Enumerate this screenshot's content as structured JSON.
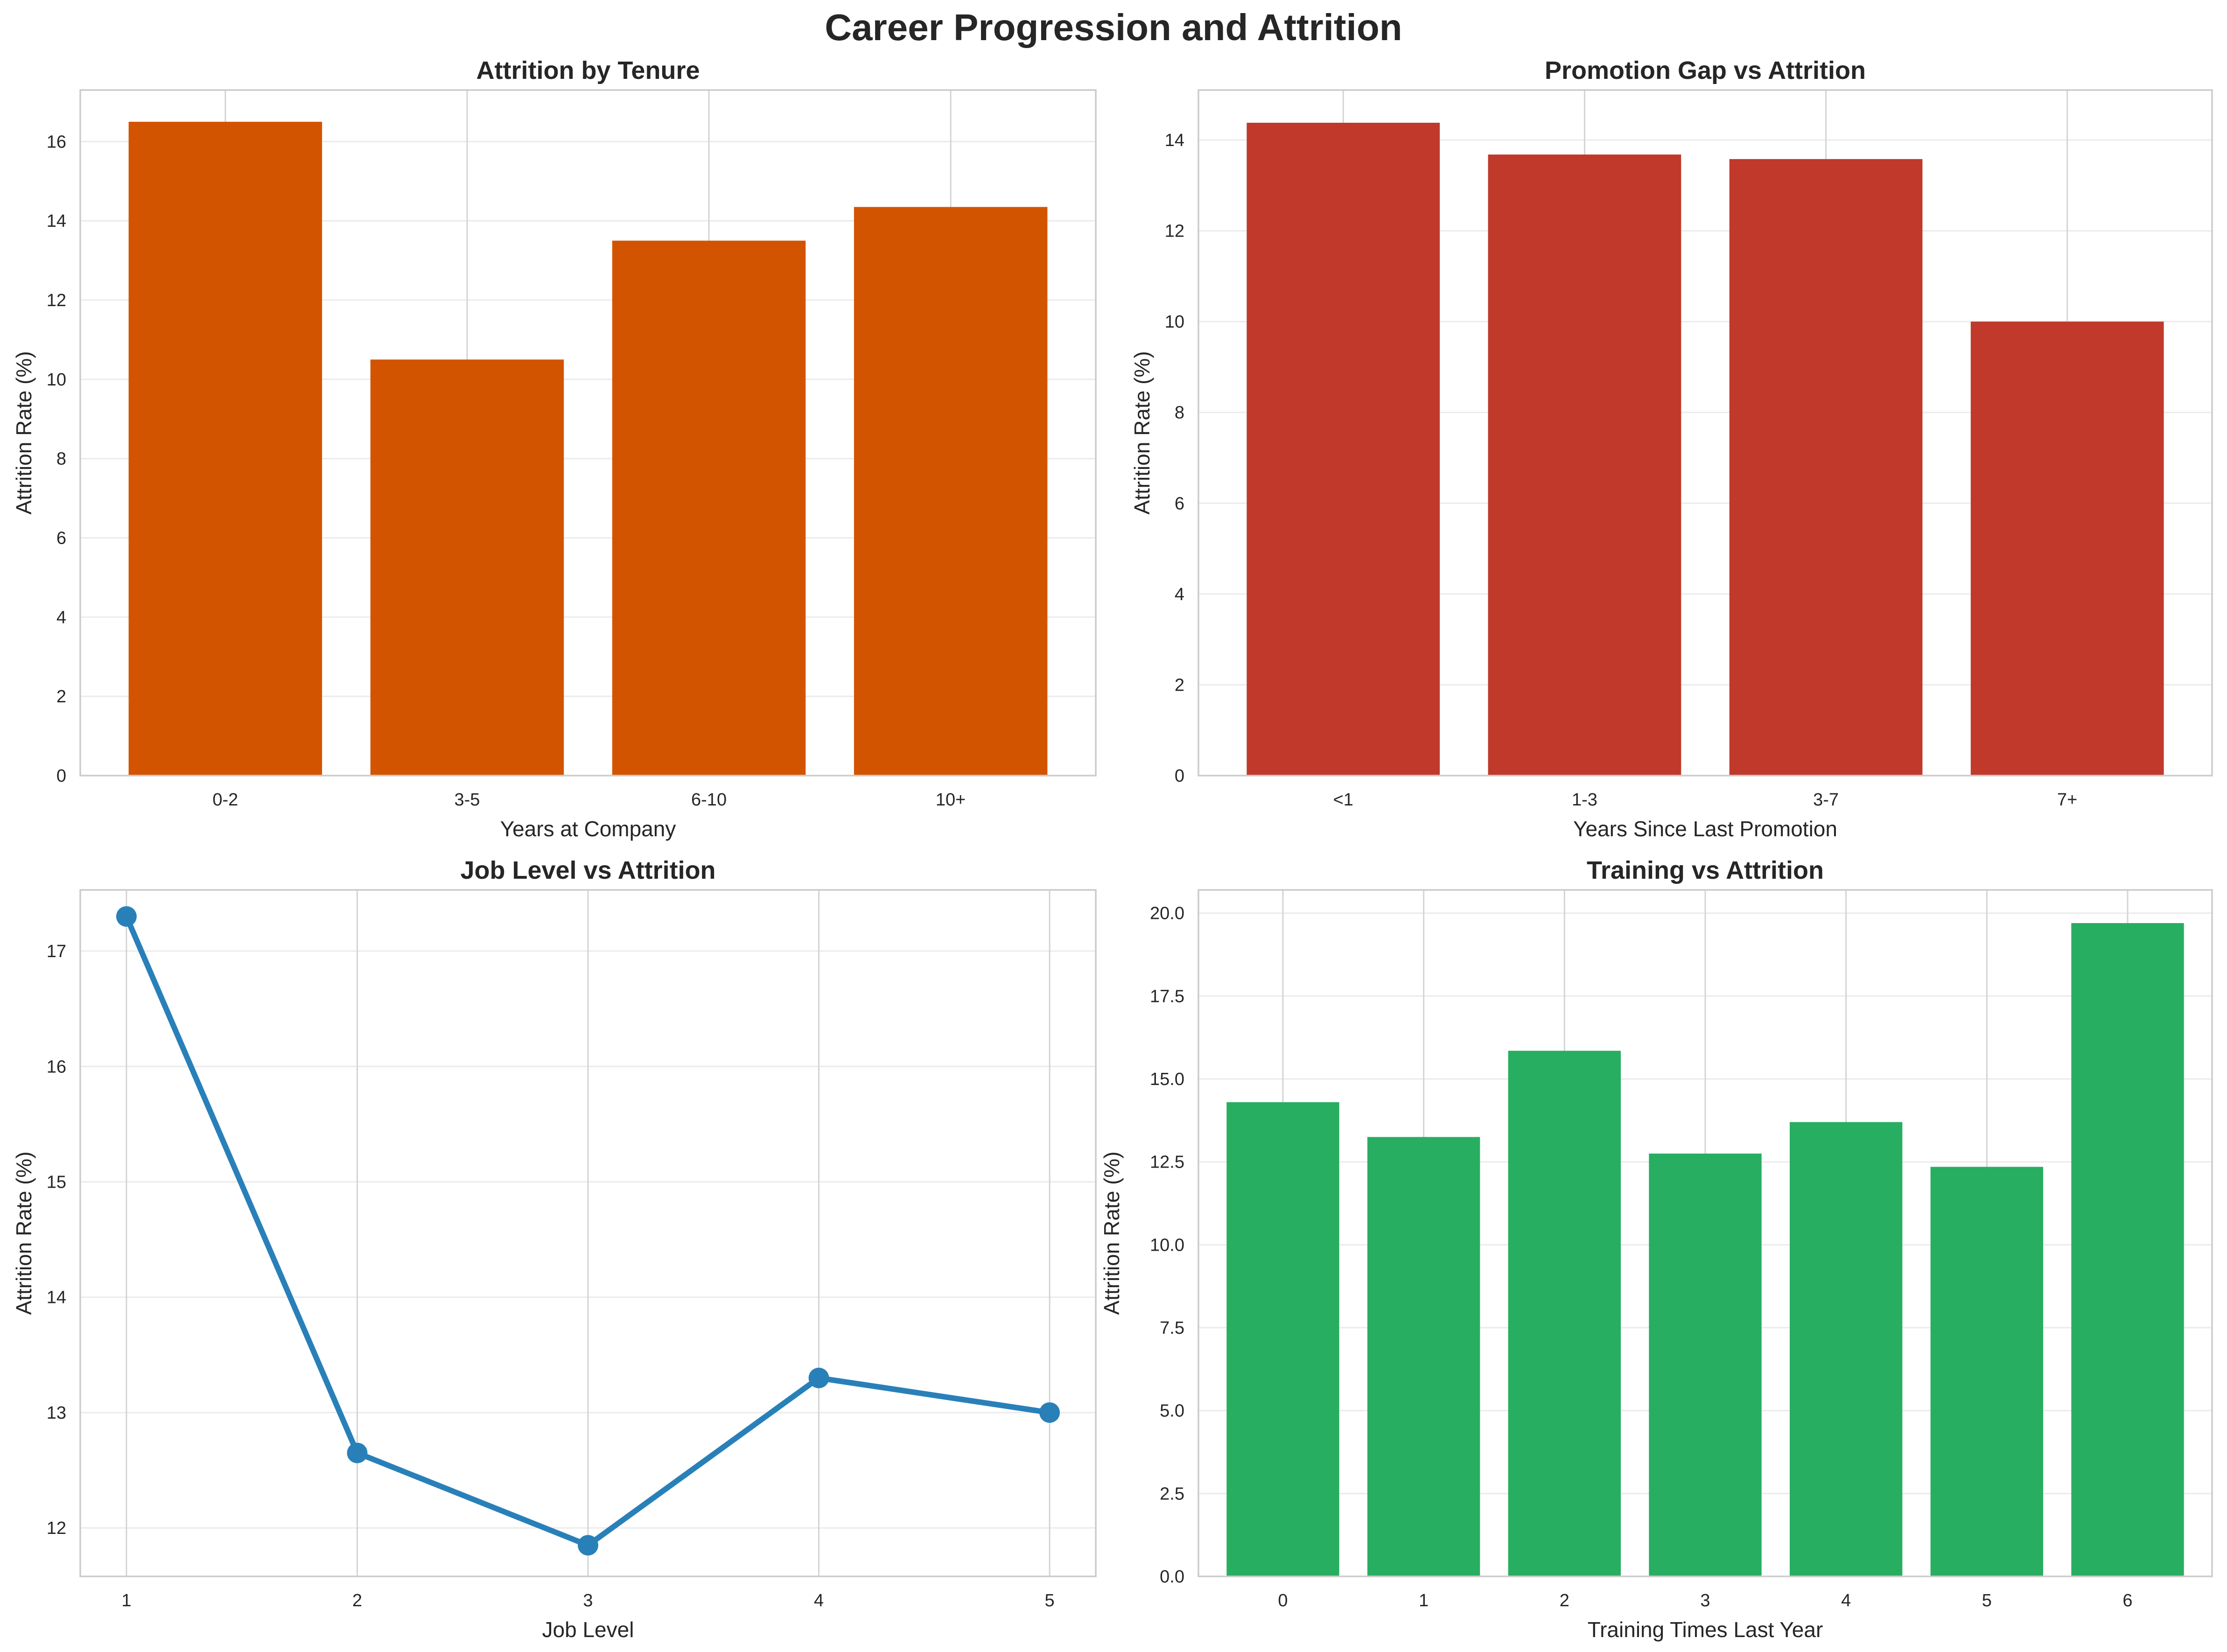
{
  "figure": {
    "title": "Career Progression and Attrition"
  },
  "chart_data": [
    {
      "type": "bar",
      "title": "Attrition by Tenure",
      "xlabel": "Years at Company",
      "ylabel": "Attrition Rate (%)",
      "categories": [
        "0-2",
        "3-5",
        "6-10",
        "10+"
      ],
      "values": [
        16.5,
        10.5,
        13.5,
        14.35
      ],
      "ylim": [
        0,
        17.3
      ],
      "yticks": [
        0,
        2,
        4,
        6,
        8,
        10,
        12,
        14,
        16
      ],
      "ytick_labels": [
        "0",
        "2",
        "4",
        "6",
        "8",
        "10",
        "12",
        "14",
        "16"
      ],
      "color": "#d35400",
      "grid": true
    },
    {
      "type": "bar",
      "title": "Promotion Gap vs Attrition",
      "xlabel": "Years Since Last Promotion",
      "ylabel": "Attrition Rate (%)",
      "categories": [
        "<1",
        "1-3",
        "3-7",
        "7+"
      ],
      "values": [
        14.38,
        13.68,
        13.58,
        10.0
      ],
      "ylim": [
        0,
        15.1
      ],
      "yticks": [
        0,
        2,
        4,
        6,
        8,
        10,
        12,
        14
      ],
      "ytick_labels": [
        "0",
        "2",
        "4",
        "6",
        "8",
        "10",
        "12",
        "14"
      ],
      "color": "#c0392b",
      "grid": true
    },
    {
      "type": "line",
      "title": "Job Level vs Attrition",
      "xlabel": "Job Level",
      "ylabel": "Attrition Rate (%)",
      "x": [
        1,
        2,
        3,
        4,
        5
      ],
      "values": [
        17.3,
        12.65,
        11.85,
        13.3,
        13.0
      ],
      "xlim": [
        0.8,
        5.2
      ],
      "ylim": [
        11.58,
        17.53
      ],
      "xticks": [
        1,
        2,
        3,
        4,
        5
      ],
      "xtick_labels": [
        "1",
        "2",
        "3",
        "4",
        "5"
      ],
      "yticks": [
        12,
        13,
        14,
        15,
        16,
        17
      ],
      "ytick_labels": [
        "12",
        "13",
        "14",
        "15",
        "16",
        "17"
      ],
      "color": "#2980b9",
      "grid": true
    },
    {
      "type": "bar",
      "title": "Training vs Attrition",
      "xlabel": "Training Times Last Year",
      "ylabel": "Attrition Rate (%)",
      "categories": [
        "0",
        "1",
        "2",
        "3",
        "4",
        "5",
        "6"
      ],
      "values": [
        14.3,
        13.25,
        15.85,
        12.75,
        13.7,
        12.35,
        19.7
      ],
      "ylim": [
        0,
        20.7
      ],
      "yticks": [
        0,
        2.5,
        5,
        7.5,
        10,
        12.5,
        15,
        17.5,
        20
      ],
      "ytick_labels": [
        "0.0",
        "2.5",
        "5.0",
        "7.5",
        "10.0",
        "12.5",
        "15.0",
        "17.5",
        "20.0"
      ],
      "color": "#27ae60",
      "grid": true
    }
  ]
}
